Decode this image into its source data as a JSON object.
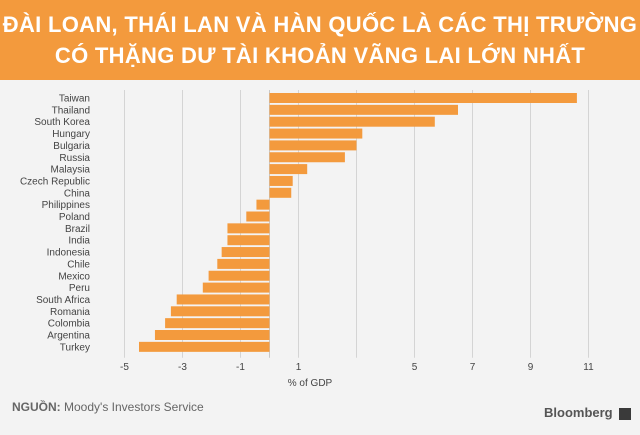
{
  "header": {
    "title_line1": "ĐÀI LOAN, THÁI LAN VÀ HÀN QUỐC LÀ CÁC THỊ TRƯỜNG",
    "title_line2": "CÓ THẶNG DƯ TÀI KHOẢN VÃNG LAI LỚN NHẤT"
  },
  "footer": {
    "source_label": "NGUỒN:",
    "source_text": "Moody's Investors Service",
    "brand": "Bloomberg"
  },
  "colors": {
    "header_bg": "#f39a3d",
    "bar": "#f39a3d",
    "panel_bg": "#f3f3f3"
  },
  "chart_data": {
    "type": "bar",
    "orientation": "horizontal",
    "categories": [
      "Taiwan",
      "Thailand",
      "South Korea",
      "Hungary",
      "Bulgaria",
      "Russia",
      "Malaysia",
      "Czech Republic",
      "China",
      "Philippines",
      "Poland",
      "Brazil",
      "India",
      "Indonesia",
      "Chile",
      "Mexico",
      "Peru",
      "South Africa",
      "Romania",
      "Colombia",
      "Argentina",
      "Turkey"
    ],
    "values": [
      10.6,
      6.5,
      5.7,
      3.2,
      3.0,
      2.6,
      1.3,
      0.8,
      0.75,
      -0.45,
      -0.8,
      -1.45,
      -1.45,
      -1.65,
      -1.8,
      -2.1,
      -2.3,
      -3.2,
      -3.4,
      -3.6,
      -3.95,
      -4.5
    ],
    "xlabel": "% of GDP",
    "xticks": [
      -5,
      -3,
      -1,
      1,
      5,
      7,
      9,
      11
    ],
    "xlim": [
      -5,
      11
    ],
    "grid": true
  }
}
